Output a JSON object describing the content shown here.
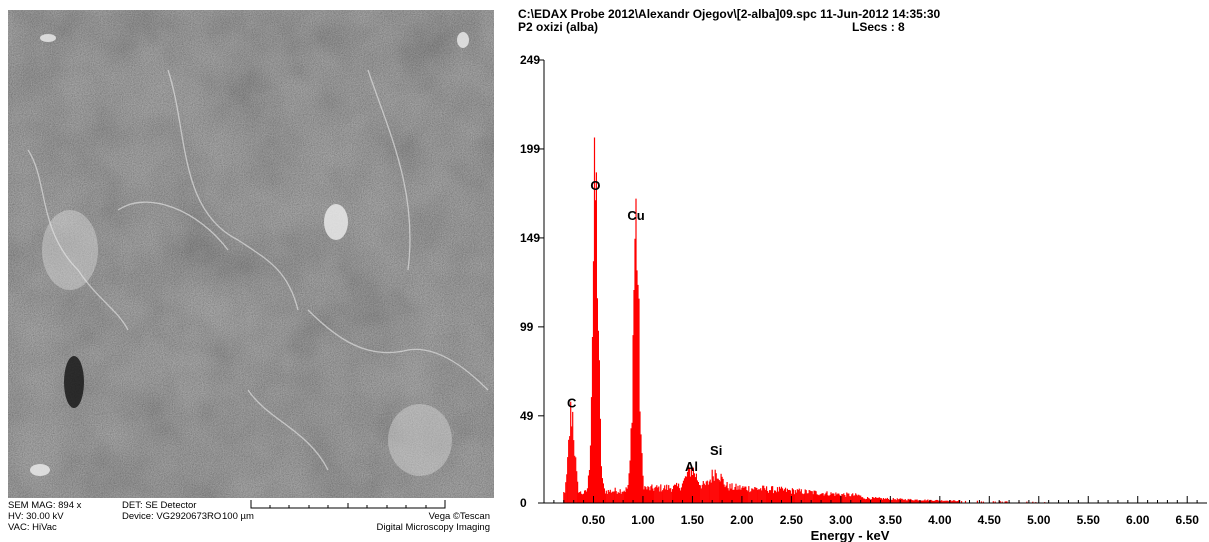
{
  "sem": {
    "mag": "SEM MAG: 894 x",
    "hv": "HV:  30.00 kV",
    "vac": "VAC: HiVac",
    "det": "DET: SE Detector",
    "device": "Device: VG2920673RO",
    "scale": "100 µm",
    "brand": "Vega ©Tescan",
    "brand_sub": "Digital Microscopy Imaging"
  },
  "spectrum": {
    "path_line": "C:\\EDAX Probe 2012\\Alexandr Ojegov\\[2-alba]09.spc  11-Jun-2012 14:35:30",
    "sample": "P2 oxizi (alba)",
    "lsecs": "LSecs :  8"
  },
  "chart_data": {
    "type": "bar",
    "xlabel": "Energy - keV",
    "ylabel": "",
    "xlim": [
      0,
      6.7
    ],
    "ylim": [
      0,
      249
    ],
    "yticks": [
      0,
      49,
      99,
      149,
      199,
      249
    ],
    "xticks": [
      "0.50",
      "1.00",
      "1.50",
      "2.00",
      "2.50",
      "3.00",
      "3.50",
      "4.00",
      "4.50",
      "5.00",
      "5.50",
      "6.00",
      "6.50"
    ],
    "bar_color": "#ff0000",
    "peaks": [
      {
        "label": "C",
        "energy": 0.28,
        "counts": 47
      },
      {
        "label": "O",
        "energy": 0.52,
        "counts": 168
      },
      {
        "label": "Cu",
        "energy": 0.93,
        "counts": 150
      },
      {
        "label": "Al",
        "energy": 1.49,
        "counts": 10
      },
      {
        "label": "Si",
        "energy": 1.74,
        "counts": 9
      }
    ]
  }
}
